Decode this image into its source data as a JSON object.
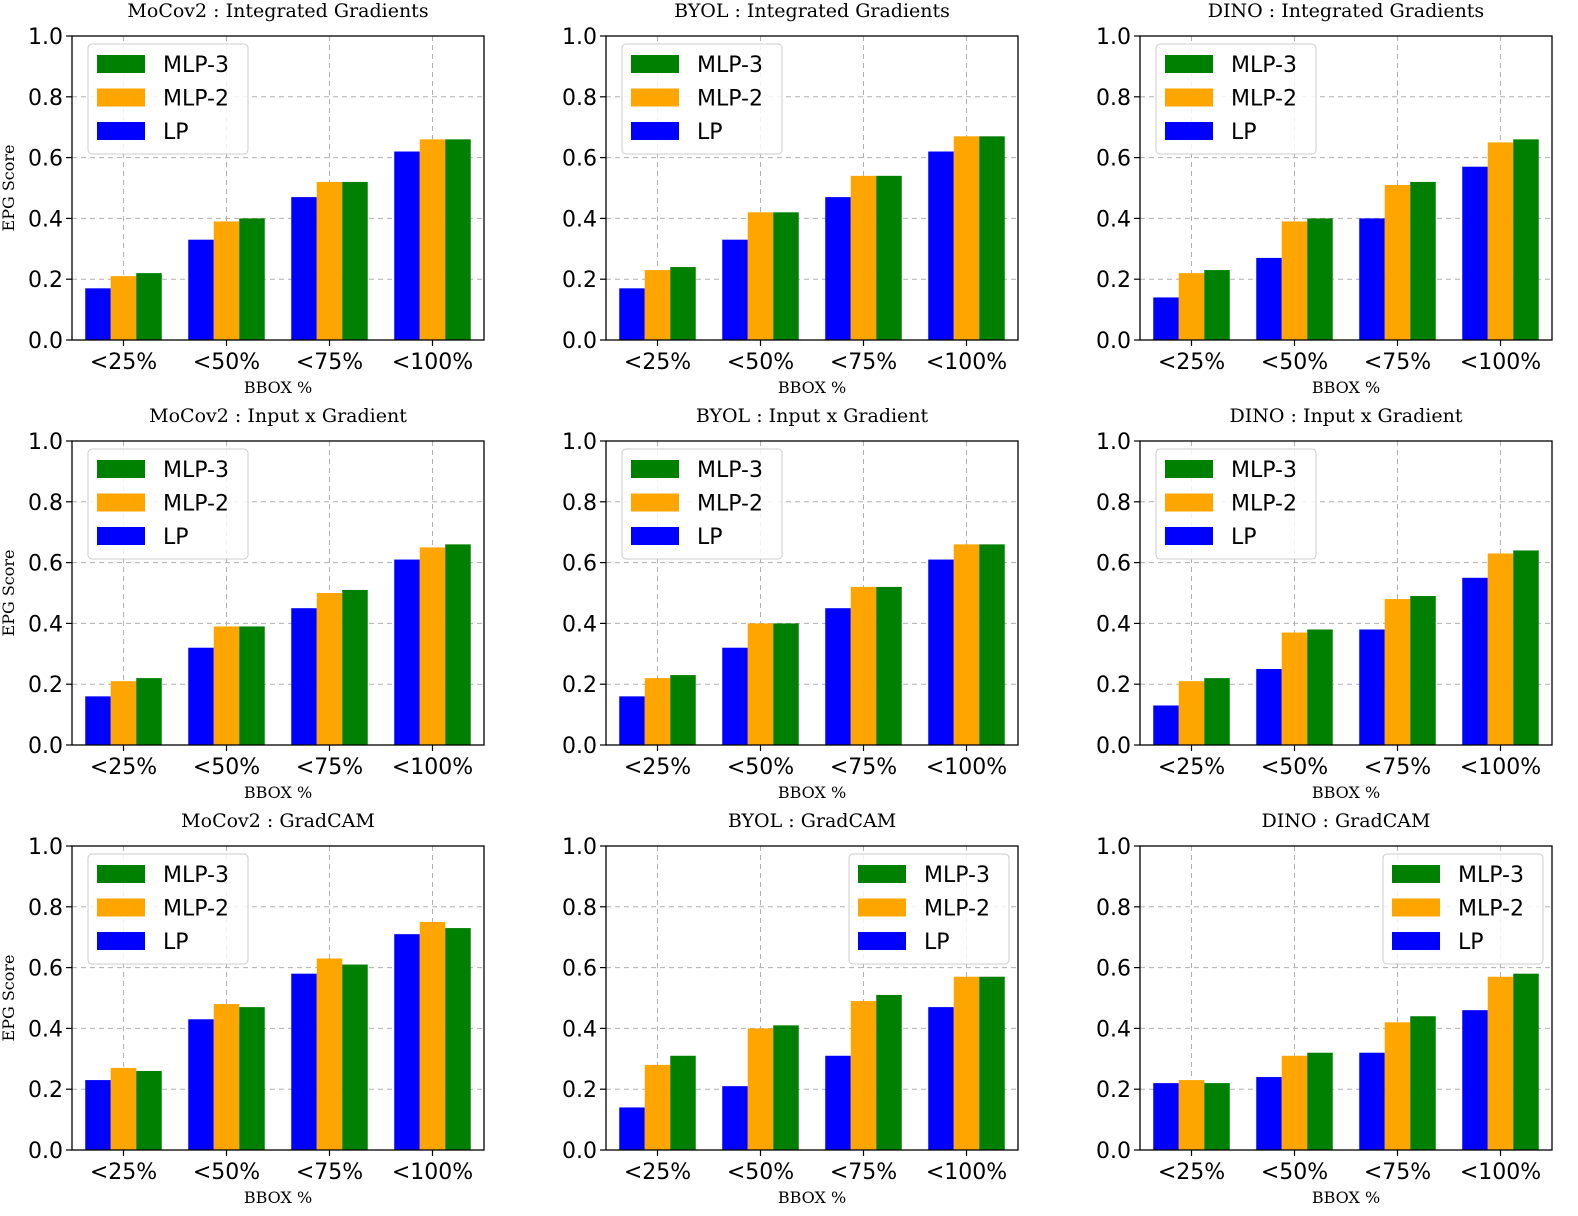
{
  "colors": {
    "LP": "#0000ff",
    "MLP-2": "#ffa500",
    "MLP-3": "#008000"
  },
  "chart_data": [
    {
      "type": "bar",
      "title": "MoCov2 : Integrated Gradients",
      "xlabel": "BBOX %",
      "ylabel": "EPG Score",
      "categories": [
        "<25%",
        "<50%",
        "<75%",
        "<100%"
      ],
      "ylim": [
        0,
        1.0
      ],
      "yticks": [
        "0.0",
        "0.2",
        "0.4",
        "0.6",
        "0.8",
        "1.0"
      ],
      "grid": true,
      "legend": "top-left",
      "legend_order": [
        "MLP-3",
        "MLP-2",
        "LP"
      ],
      "series": [
        {
          "name": "LP",
          "values": [
            0.17,
            0.33,
            0.47,
            0.62
          ]
        },
        {
          "name": "MLP-2",
          "values": [
            0.21,
            0.39,
            0.52,
            0.66
          ]
        },
        {
          "name": "MLP-3",
          "values": [
            0.22,
            0.4,
            0.52,
            0.66
          ]
        }
      ]
    },
    {
      "type": "bar",
      "title": "BYOL : Integrated Gradients",
      "xlabel": "BBOX %",
      "ylabel": "",
      "categories": [
        "<25%",
        "<50%",
        "<75%",
        "<100%"
      ],
      "ylim": [
        0,
        1.0
      ],
      "yticks": [
        "0.0",
        "0.2",
        "0.4",
        "0.6",
        "0.8",
        "1.0"
      ],
      "grid": true,
      "legend": "top-left",
      "legend_order": [
        "MLP-3",
        "MLP-2",
        "LP"
      ],
      "series": [
        {
          "name": "LP",
          "values": [
            0.17,
            0.33,
            0.47,
            0.62
          ]
        },
        {
          "name": "MLP-2",
          "values": [
            0.23,
            0.42,
            0.54,
            0.67
          ]
        },
        {
          "name": "MLP-3",
          "values": [
            0.24,
            0.42,
            0.54,
            0.67
          ]
        }
      ]
    },
    {
      "type": "bar",
      "title": "DINO : Integrated Gradients",
      "xlabel": "BBOX %",
      "ylabel": "",
      "categories": [
        "<25%",
        "<50%",
        "<75%",
        "<100%"
      ],
      "ylim": [
        0,
        1.0
      ],
      "yticks": [
        "0.0",
        "0.2",
        "0.4",
        "0.6",
        "0.8",
        "1.0"
      ],
      "grid": true,
      "legend": "top-left",
      "legend_order": [
        "MLP-3",
        "MLP-2",
        "LP"
      ],
      "series": [
        {
          "name": "LP",
          "values": [
            0.14,
            0.27,
            0.4,
            0.57
          ]
        },
        {
          "name": "MLP-2",
          "values": [
            0.22,
            0.39,
            0.51,
            0.65
          ]
        },
        {
          "name": "MLP-3",
          "values": [
            0.23,
            0.4,
            0.52,
            0.66
          ]
        }
      ]
    },
    {
      "type": "bar",
      "title": "MoCov2 : Input x Gradient",
      "xlabel": "BBOX %",
      "ylabel": "EPG Score",
      "categories": [
        "<25%",
        "<50%",
        "<75%",
        "<100%"
      ],
      "ylim": [
        0,
        1.0
      ],
      "yticks": [
        "0.0",
        "0.2",
        "0.4",
        "0.6",
        "0.8",
        "1.0"
      ],
      "grid": true,
      "legend": "top-left",
      "legend_order": [
        "MLP-3",
        "MLP-2",
        "LP"
      ],
      "series": [
        {
          "name": "LP",
          "values": [
            0.16,
            0.32,
            0.45,
            0.61
          ]
        },
        {
          "name": "MLP-2",
          "values": [
            0.21,
            0.39,
            0.5,
            0.65
          ]
        },
        {
          "name": "MLP-3",
          "values": [
            0.22,
            0.39,
            0.51,
            0.66
          ]
        }
      ]
    },
    {
      "type": "bar",
      "title": "BYOL : Input x Gradient",
      "xlabel": "BBOX %",
      "ylabel": "",
      "categories": [
        "<25%",
        "<50%",
        "<75%",
        "<100%"
      ],
      "ylim": [
        0,
        1.0
      ],
      "yticks": [
        "0.0",
        "0.2",
        "0.4",
        "0.6",
        "0.8",
        "1.0"
      ],
      "grid": true,
      "legend": "top-left",
      "legend_order": [
        "MLP-3",
        "MLP-2",
        "LP"
      ],
      "series": [
        {
          "name": "LP",
          "values": [
            0.16,
            0.32,
            0.45,
            0.61
          ]
        },
        {
          "name": "MLP-2",
          "values": [
            0.22,
            0.4,
            0.52,
            0.66
          ]
        },
        {
          "name": "MLP-3",
          "values": [
            0.23,
            0.4,
            0.52,
            0.66
          ]
        }
      ]
    },
    {
      "type": "bar",
      "title": "DINO : Input x Gradient",
      "xlabel": "BBOX %",
      "ylabel": "",
      "categories": [
        "<25%",
        "<50%",
        "<75%",
        "<100%"
      ],
      "ylim": [
        0,
        1.0
      ],
      "yticks": [
        "0.0",
        "0.2",
        "0.4",
        "0.6",
        "0.8",
        "1.0"
      ],
      "grid": true,
      "legend": "top-left",
      "legend_order": [
        "MLP-3",
        "MLP-2",
        "LP"
      ],
      "series": [
        {
          "name": "LP",
          "values": [
            0.13,
            0.25,
            0.38,
            0.55
          ]
        },
        {
          "name": "MLP-2",
          "values": [
            0.21,
            0.37,
            0.48,
            0.63
          ]
        },
        {
          "name": "MLP-3",
          "values": [
            0.22,
            0.38,
            0.49,
            0.64
          ]
        }
      ]
    },
    {
      "type": "bar",
      "title": "MoCov2 : GradCAM",
      "xlabel": "BBOX %",
      "ylabel": "EPG Score",
      "categories": [
        "<25%",
        "<50%",
        "<75%",
        "<100%"
      ],
      "ylim": [
        0,
        1.0
      ],
      "yticks": [
        "0.0",
        "0.2",
        "0.4",
        "0.6",
        "0.8",
        "1.0"
      ],
      "grid": true,
      "legend": "top-left",
      "legend_order": [
        "MLP-3",
        "MLP-2",
        "LP"
      ],
      "series": [
        {
          "name": "LP",
          "values": [
            0.23,
            0.43,
            0.58,
            0.71
          ]
        },
        {
          "name": "MLP-2",
          "values": [
            0.27,
            0.48,
            0.63,
            0.75
          ]
        },
        {
          "name": "MLP-3",
          "values": [
            0.26,
            0.47,
            0.61,
            0.73
          ]
        }
      ]
    },
    {
      "type": "bar",
      "title": "BYOL : GradCAM",
      "xlabel": "BBOX %",
      "ylabel": "",
      "categories": [
        "<25%",
        "<50%",
        "<75%",
        "<100%"
      ],
      "ylim": [
        0,
        1.0
      ],
      "yticks": [
        "0.0",
        "0.2",
        "0.4",
        "0.6",
        "0.8",
        "1.0"
      ],
      "grid": true,
      "legend": "top-right",
      "legend_order": [
        "MLP-3",
        "MLP-2",
        "LP"
      ],
      "series": [
        {
          "name": "LP",
          "values": [
            0.14,
            0.21,
            0.31,
            0.47
          ]
        },
        {
          "name": "MLP-2",
          "values": [
            0.28,
            0.4,
            0.49,
            0.57
          ]
        },
        {
          "name": "MLP-3",
          "values": [
            0.31,
            0.41,
            0.51,
            0.57
          ]
        }
      ]
    },
    {
      "type": "bar",
      "title": "DINO : GradCAM",
      "xlabel": "BBOX %",
      "ylabel": "",
      "categories": [
        "<25%",
        "<50%",
        "<75%",
        "<100%"
      ],
      "ylim": [
        0,
        1.0
      ],
      "yticks": [
        "0.0",
        "0.2",
        "0.4",
        "0.6",
        "0.8",
        "1.0"
      ],
      "grid": true,
      "legend": "top-right",
      "legend_order": [
        "MLP-3",
        "MLP-2",
        "LP"
      ],
      "series": [
        {
          "name": "LP",
          "values": [
            0.22,
            0.24,
            0.32,
            0.46
          ]
        },
        {
          "name": "MLP-2",
          "values": [
            0.23,
            0.31,
            0.42,
            0.57
          ]
        },
        {
          "name": "MLP-3",
          "values": [
            0.22,
            0.32,
            0.44,
            0.58
          ]
        }
      ]
    }
  ]
}
